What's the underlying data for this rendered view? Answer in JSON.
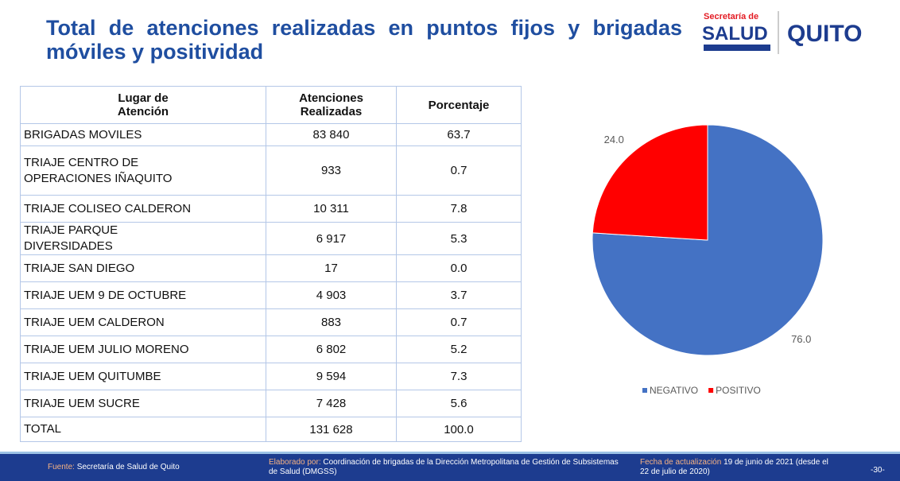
{
  "header": {
    "title": "Total de atenciones realizadas en puntos fijos y brigadas móviles y positividad",
    "logo": {
      "top": "Secretaría de",
      "main": "SALUD",
      "city": "QUITO"
    }
  },
  "table": {
    "columns": [
      "Lugar de Atención",
      "Atenciones Realizadas",
      "Porcentaje"
    ],
    "rows": [
      [
        "BRIGADAS MOVILES",
        "83 840",
        "63.7"
      ],
      [
        "TRIAJE CENTRO DE OPERACIONES IÑAQUITO",
        "933",
        "0.7"
      ],
      [
        "TRIAJE COLISEO CALDERON",
        "10 311",
        "7.8"
      ],
      [
        "TRIAJE PARQUE DIVERSIDADES",
        "6 917",
        "5.3"
      ],
      [
        "TRIAJE SAN DIEGO",
        "17",
        "0.0"
      ],
      [
        "TRIAJE UEM 9 DE OCTUBRE",
        "4 903",
        "3.7"
      ],
      [
        "TRIAJE UEM CALDERON",
        "883",
        "0.7"
      ],
      [
        "TRIAJE UEM JULIO MORENO",
        "6 802",
        "5.2"
      ],
      [
        "TRIAJE UEM QUITUMBE",
        "9 594",
        "7.3"
      ],
      [
        "TRIAJE UEM SUCRE",
        "7 428",
        "5.6"
      ],
      [
        "TOTAL",
        "131 628",
        "100.0"
      ]
    ]
  },
  "chart_data": {
    "type": "pie",
    "categories": [
      "NEGATIVO",
      "POSITIVO"
    ],
    "values": [
      76,
      24
    ],
    "value_labels": [
      "76.0",
      "24.0"
    ],
    "colors": [
      "#4472c4",
      "#ff0000"
    ],
    "legend": "bottom"
  },
  "footer": {
    "source_label": "Fuente:",
    "source": "Secretaría de Salud de Quito",
    "made_label": "Elaborado por:",
    "made": "Coordinación de brigadas de la Dirección Metropolitana de Gestión de Subsistemas de Salud (DMGSS)",
    "date_label": "Fecha de actualización",
    "date": "19 de junio de 2021 (desde el 22 de julio de 2020)",
    "page": "-30-"
  }
}
